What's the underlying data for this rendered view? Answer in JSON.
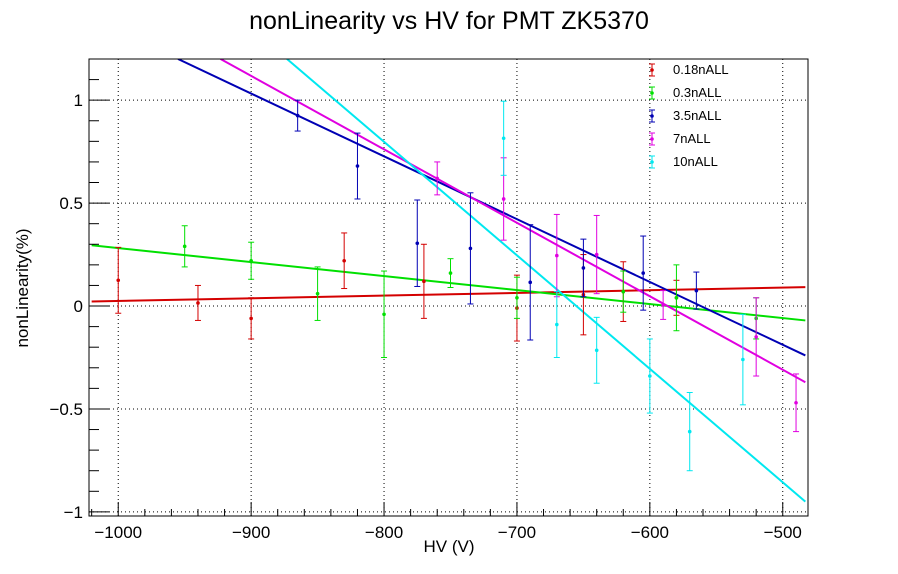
{
  "chart_data": {
    "type": "scatter",
    "title": "nonLinearity vs HV for PMT ZK5370",
    "xlabel": "HV (V)",
    "ylabel": "nonLinearity(%)",
    "xlim": [
      -1022,
      -481
    ],
    "ylim": [
      -1.02,
      1.2
    ],
    "x_ticks": [
      -1000,
      -900,
      -800,
      -700,
      -600,
      -500
    ],
    "x_tick_labels": [
      "−1000",
      "−900",
      "−800",
      "−700",
      "−600",
      "−500"
    ],
    "y_ticks": [
      -1,
      -0.5,
      0,
      0.5,
      1
    ],
    "y_tick_labels": [
      "−1",
      "−0.5",
      "0",
      "0.5",
      "1"
    ],
    "grid": true,
    "legend_position": "top-right",
    "series": [
      {
        "name": "0.18nALL",
        "color": "#d40000",
        "points": [
          {
            "x": -1000,
            "y": 0.125,
            "err": 0.16
          },
          {
            "x": -940,
            "y": 0.015,
            "err": 0.085
          },
          {
            "x": -900,
            "y": -0.06,
            "err": 0.1
          },
          {
            "x": -830,
            "y": 0.22,
            "err": 0.135
          },
          {
            "x": -770,
            "y": 0.12,
            "err": 0.18
          },
          {
            "x": -700,
            "y": -0.01,
            "err": 0.16
          },
          {
            "x": -650,
            "y": 0.055,
            "err": 0.195
          },
          {
            "x": -620,
            "y": 0.07,
            "err": 0.145
          },
          {
            "x": -580,
            "y": 0.04,
            "err": 0.085
          }
        ],
        "fit": [
          [
            -1020,
            0.022
          ],
          [
            -483,
            0.092
          ]
        ]
      },
      {
        "name": "0.3nALL",
        "color": "#00e000",
        "points": [
          {
            "x": -950,
            "y": 0.29,
            "err": 0.1
          },
          {
            "x": -900,
            "y": 0.22,
            "err": 0.09
          },
          {
            "x": -850,
            "y": 0.06,
            "err": 0.13
          },
          {
            "x": -800,
            "y": -0.04,
            "err": 0.21
          },
          {
            "x": -750,
            "y": 0.16,
            "err": 0.07
          },
          {
            "x": -700,
            "y": 0.04,
            "err": 0.1
          },
          {
            "x": -620,
            "y": 0.07,
            "err": 0.1
          },
          {
            "x": -580,
            "y": 0.04,
            "err": 0.16
          },
          {
            "x": -520,
            "y": -0.06,
            "err": 0.1
          }
        ],
        "fit": [
          [
            -1020,
            0.295
          ],
          [
            -483,
            -0.07
          ]
        ]
      },
      {
        "name": "3.5nALL",
        "color": "#0000b4",
        "points": [
          {
            "x": -865,
            "y": 0.925,
            "err": 0.075
          },
          {
            "x": -820,
            "y": 0.68,
            "err": 0.16
          },
          {
            "x": -775,
            "y": 0.305,
            "err": 0.21
          },
          {
            "x": -735,
            "y": 0.28,
            "err": 0.27
          },
          {
            "x": -690,
            "y": 0.115,
            "err": 0.28
          },
          {
            "x": -650,
            "y": 0.185,
            "err": 0.14
          },
          {
            "x": -605,
            "y": 0.16,
            "err": 0.18
          },
          {
            "x": -565,
            "y": 0.075,
            "err": 0.09
          }
        ],
        "fit": [
          [
            -955,
            1.2
          ],
          [
            -483,
            -0.24
          ]
        ]
      },
      {
        "name": "7nALL",
        "color": "#e000e0",
        "points": [
          {
            "x": -760,
            "y": 0.62,
            "err": 0.08
          },
          {
            "x": -710,
            "y": 0.52,
            "err": 0.2
          },
          {
            "x": -670,
            "y": 0.245,
            "err": 0.2
          },
          {
            "x": -640,
            "y": 0.25,
            "err": 0.19
          },
          {
            "x": -590,
            "y": 0.005,
            "err": 0.07
          },
          {
            "x": -520,
            "y": -0.15,
            "err": 0.19
          },
          {
            "x": -490,
            "y": -0.47,
            "err": 0.14
          }
        ],
        "fit": [
          [
            -923,
            1.2
          ],
          [
            -483,
            -0.37
          ]
        ]
      },
      {
        "name": "10nALL",
        "color": "#00e8f0",
        "points": [
          {
            "x": -710,
            "y": 0.815,
            "err": 0.18
          },
          {
            "x": -670,
            "y": -0.09,
            "err": 0.16
          },
          {
            "x": -640,
            "y": -0.215,
            "err": 0.16
          },
          {
            "x": -600,
            "y": -0.34,
            "err": 0.18
          },
          {
            "x": -570,
            "y": -0.61,
            "err": 0.19
          },
          {
            "x": -530,
            "y": -0.26,
            "err": 0.22
          }
        ],
        "fit": [
          [
            -873,
            1.2
          ],
          [
            -483,
            -0.95
          ]
        ]
      }
    ]
  }
}
